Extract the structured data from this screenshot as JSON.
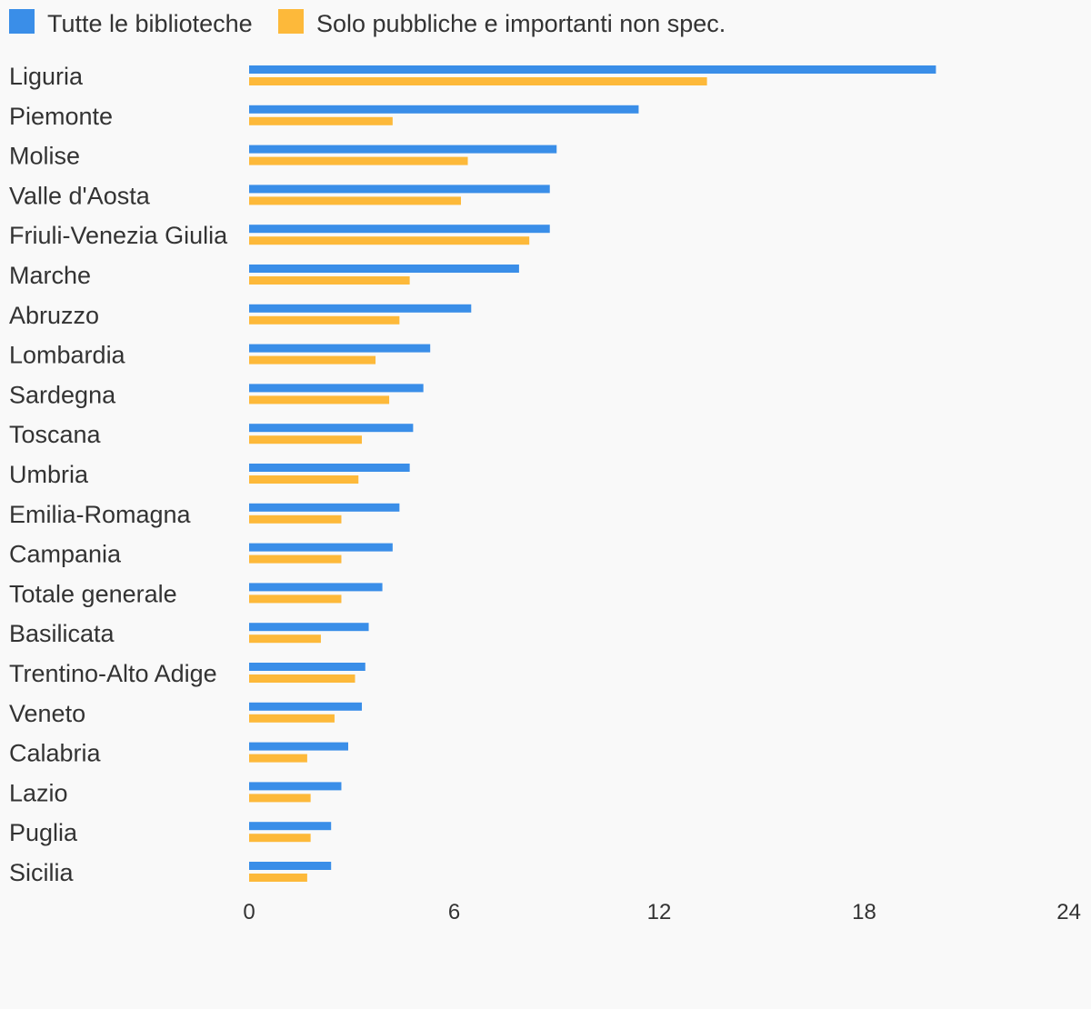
{
  "chart_data": {
    "type": "bar",
    "orientation": "horizontal",
    "categories": [
      "Liguria",
      "Piemonte",
      "Molise",
      "Valle d'Aosta",
      "Friuli-Venezia Giulia",
      "Marche",
      "Abruzzo",
      "Lombardia",
      "Sardegna",
      "Toscana",
      "Umbria",
      "Emilia-Romagna",
      "Campania",
      "Totale generale",
      "Basilicata",
      "Trentino-Alto Adige",
      "Veneto",
      "Calabria",
      "Lazio",
      "Puglia",
      "Sicilia"
    ],
    "series": [
      {
        "name": "Tutte le biblioteche",
        "color": "#3a8ee8",
        "values": [
          20.1,
          11.4,
          9.0,
          8.8,
          8.8,
          7.9,
          6.5,
          5.3,
          5.1,
          4.8,
          4.7,
          4.4,
          4.2,
          3.9,
          3.5,
          3.4,
          3.3,
          2.9,
          2.7,
          2.4,
          2.4
        ]
      },
      {
        "name": "Solo pubbliche e importanti non spec.",
        "color": "#fdb93a",
        "values": [
          13.4,
          4.2,
          6.4,
          6.2,
          8.2,
          4.7,
          4.4,
          3.7,
          4.1,
          3.3,
          3.2,
          2.7,
          2.7,
          2.7,
          2.1,
          3.1,
          2.5,
          1.7,
          1.8,
          1.8,
          1.7
        ]
      }
    ],
    "xticks": [
      "0",
      "6",
      "12",
      "18",
      "24"
    ],
    "xlim": [
      0,
      24
    ],
    "grid": false,
    "legend": "top-left"
  }
}
